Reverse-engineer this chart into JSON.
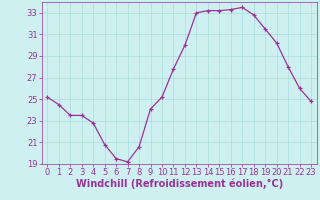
{
  "x": [
    0,
    1,
    2,
    3,
    4,
    5,
    6,
    7,
    8,
    9,
    10,
    11,
    12,
    13,
    14,
    15,
    16,
    17,
    18,
    19,
    20,
    21,
    22,
    23
  ],
  "y": [
    25.2,
    24.5,
    23.5,
    23.5,
    22.8,
    20.8,
    19.5,
    19.2,
    20.6,
    24.1,
    25.2,
    27.8,
    30.0,
    33.0,
    33.2,
    33.2,
    33.3,
    33.5,
    32.8,
    31.5,
    30.2,
    28.0,
    26.0,
    24.8
  ],
  "line_color": "#993399",
  "marker": "+",
  "marker_size": 3,
  "background_color": "#cff0f0",
  "grid_color": "#aadddd",
  "xlabel": "Windchill (Refroidissement éolien,°C)",
  "xlabel_fontsize": 7,
  "tick_fontsize": 6,
  "ylim": [
    19,
    34
  ],
  "xlim": [
    -0.5,
    23.5
  ],
  "yticks": [
    19,
    21,
    23,
    25,
    27,
    29,
    31,
    33
  ],
  "xticks": [
    0,
    1,
    2,
    3,
    4,
    5,
    6,
    7,
    8,
    9,
    10,
    11,
    12,
    13,
    14,
    15,
    16,
    17,
    18,
    19,
    20,
    21,
    22,
    23
  ]
}
